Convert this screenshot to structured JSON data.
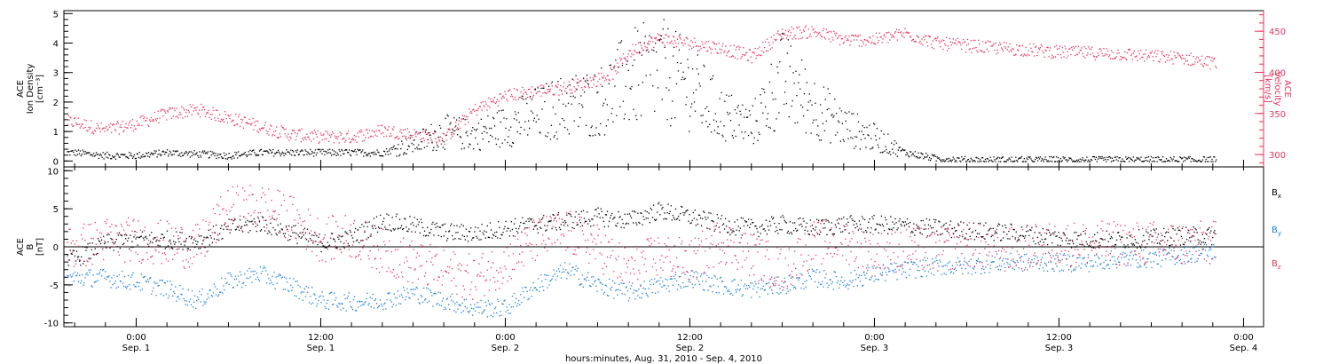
{
  "figure": {
    "footer": "hours:minutes, Aug. 31, 2010 - Sep.  4, 2010",
    "time_ticks": [
      {
        "hour": 24,
        "time": "0:00",
        "date": "Sep. 1"
      },
      {
        "hour": 36,
        "time": "12:00",
        "date": "Sep. 1"
      },
      {
        "hour": 48,
        "time": "0:00",
        "date": "Sep. 2"
      },
      {
        "hour": 60,
        "time": "12:00",
        "date": "Sep. 2"
      },
      {
        "hour": 72,
        "time": "0:00",
        "date": "Sep. 3"
      },
      {
        "hour": 84,
        "time": "12:00",
        "date": "Sep. 3"
      },
      {
        "hour": 96,
        "time": "0:00",
        "date": "Sep. 4"
      }
    ]
  },
  "chart_data": [
    {
      "type": "scatter",
      "panel": "plasma",
      "ylabel_left": [
        "ACE",
        "Ion Density",
        "[cm⁻³]"
      ],
      "ylabel_right": [
        "ACE",
        "Velocity",
        "[km/s]"
      ],
      "ylim": [
        -0.2,
        5.1
      ],
      "yticks": [
        0,
        1,
        2,
        3,
        4,
        5
      ],
      "ylim_right": [
        285,
        475
      ],
      "yticks_right": [
        300,
        350,
        400,
        450
      ],
      "xlim_hours": [
        19.3,
        97.3
      ],
      "colors": {
        "density": "#000000",
        "velocity": "#e8325e"
      },
      "series": [
        {
          "name": "",
          "axis": "left",
          "color": "#000000",
          "x_hours": [
            20,
            22,
            24,
            26,
            28,
            30,
            32,
            34,
            36,
            38,
            40,
            42,
            44,
            46,
            48,
            50,
            52,
            54,
            55,
            56,
            58,
            60,
            62,
            64,
            66,
            68,
            70,
            72,
            74,
            76,
            78,
            80,
            82,
            84,
            86,
            88,
            90,
            92,
            94
          ],
          "values": [
            0.3,
            0.2,
            0.2,
            0.3,
            0.25,
            0.2,
            0.3,
            0.3,
            0.3,
            0.3,
            0.3,
            0.6,
            1.0,
            0.9,
            1.2,
            1.6,
            1.9,
            2.0,
            2.4,
            2.8,
            3.1,
            2.5,
            1.6,
            1.2,
            2.8,
            1.9,
            1.2,
            0.8,
            0.3,
            0.1,
            0.05,
            0.05,
            0.05,
            0.05,
            0.05,
            0.05,
            0.05,
            0.05,
            0.05
          ]
        },
        {
          "name": "",
          "axis": "right",
          "color": "#e8325e",
          "x_hours": [
            20,
            22,
            24,
            26,
            28,
            30,
            32,
            34,
            36,
            38,
            40,
            42,
            44,
            46,
            48,
            50,
            52,
            54,
            55,
            56,
            58,
            60,
            62,
            64,
            66,
            68,
            70,
            72,
            74,
            76,
            78,
            80,
            82,
            84,
            86,
            88,
            90,
            92,
            94
          ],
          "values": [
            340,
            330,
            338,
            350,
            355,
            345,
            335,
            325,
            322,
            322,
            330,
            325,
            320,
            355,
            372,
            378,
            382,
            392,
            400,
            425,
            442,
            436,
            430,
            420,
            448,
            450,
            440,
            440,
            448,
            436,
            433,
            430,
            428,
            425,
            424,
            423,
            420,
            418,
            412
          ]
        }
      ]
    },
    {
      "type": "scatter",
      "panel": "magnetic field",
      "ylabel_left": [
        "ACE",
        "B",
        "[nT]"
      ],
      "ylim": [
        -10.5,
        10.5
      ],
      "yticks": [
        -10,
        -5,
        0,
        5,
        10
      ],
      "xlim_hours": [
        19.3,
        97.3
      ],
      "zero_line": true,
      "series": [
        {
          "name": "B",
          "subscript": "x",
          "color": "#000000",
          "x_hours": [
            20,
            22,
            24,
            26,
            28,
            30,
            32,
            34,
            36,
            38,
            40,
            42,
            44,
            46,
            48,
            50,
            52,
            54,
            56,
            58,
            60,
            62,
            64,
            66,
            68,
            70,
            72,
            74,
            76,
            78,
            80,
            82,
            84,
            86,
            88,
            90,
            92,
            94
          ],
          "values": [
            -1.5,
            0.5,
            1.0,
            1.0,
            0.8,
            2.5,
            3.2,
            2.0,
            0.6,
            1.2,
            3.5,
            2.8,
            2.0,
            1.8,
            2.5,
            3.0,
            3.5,
            4.0,
            3.5,
            4.8,
            4.0,
            3.0,
            2.5,
            3.0,
            2.5,
            3.0,
            3.0,
            2.8,
            2.5,
            2.2,
            2.0,
            1.8,
            1.2,
            1.0,
            1.0,
            1.2,
            1.5,
            1.5
          ]
        },
        {
          "name": "B",
          "subscript": "y",
          "color": "#1a7fd9",
          "x_hours": [
            20,
            22,
            24,
            26,
            28,
            30,
            32,
            34,
            36,
            38,
            40,
            42,
            44,
            46,
            48,
            50,
            52,
            54,
            56,
            58,
            60,
            62,
            64,
            66,
            68,
            70,
            72,
            74,
            76,
            78,
            80,
            82,
            84,
            86,
            88,
            90,
            92,
            94
          ],
          "values": [
            -4.0,
            -4.0,
            -4.5,
            -5.5,
            -7.0,
            -4.5,
            -3.5,
            -5.0,
            -7.0,
            -7.2,
            -7.0,
            -6.0,
            -7.0,
            -8.0,
            -8.0,
            -5.0,
            -3.0,
            -5.0,
            -6.0,
            -5.0,
            -4.0,
            -5.0,
            -5.5,
            -5.0,
            -4.0,
            -4.5,
            -3.5,
            -3.0,
            -2.5,
            -2.5,
            -2.0,
            -2.0,
            -2.0,
            -2.0,
            -1.5,
            -1.5,
            -1.0,
            -0.5
          ]
        },
        {
          "name": "B",
          "subscript": "z",
          "color": "#e8325e",
          "x_hours": [
            20,
            22,
            24,
            26,
            28,
            30,
            32,
            34,
            36,
            38,
            40,
            42,
            44,
            46,
            48,
            50,
            52,
            54,
            56,
            58,
            60,
            62,
            64,
            66,
            68,
            70,
            72,
            74,
            76,
            78,
            80,
            82,
            84,
            86,
            88,
            90,
            92,
            94
          ],
          "values": [
            0.0,
            1.0,
            1.0,
            0.5,
            0.0,
            5.0,
            5.5,
            4.0,
            1.0,
            1.5,
            -0.5,
            -2.0,
            -3.0,
            -4.0,
            -2.0,
            1.0,
            2.0,
            0.0,
            -3.0,
            -1.0,
            -2.0,
            1.0,
            -1.0,
            -3.0,
            0.5,
            1.0,
            -1.0,
            0.0,
            -0.5,
            0.5,
            -0.5,
            0.0,
            0.5,
            0.5,
            0.5,
            0.5,
            0.5,
            0.5
          ]
        }
      ]
    }
  ]
}
